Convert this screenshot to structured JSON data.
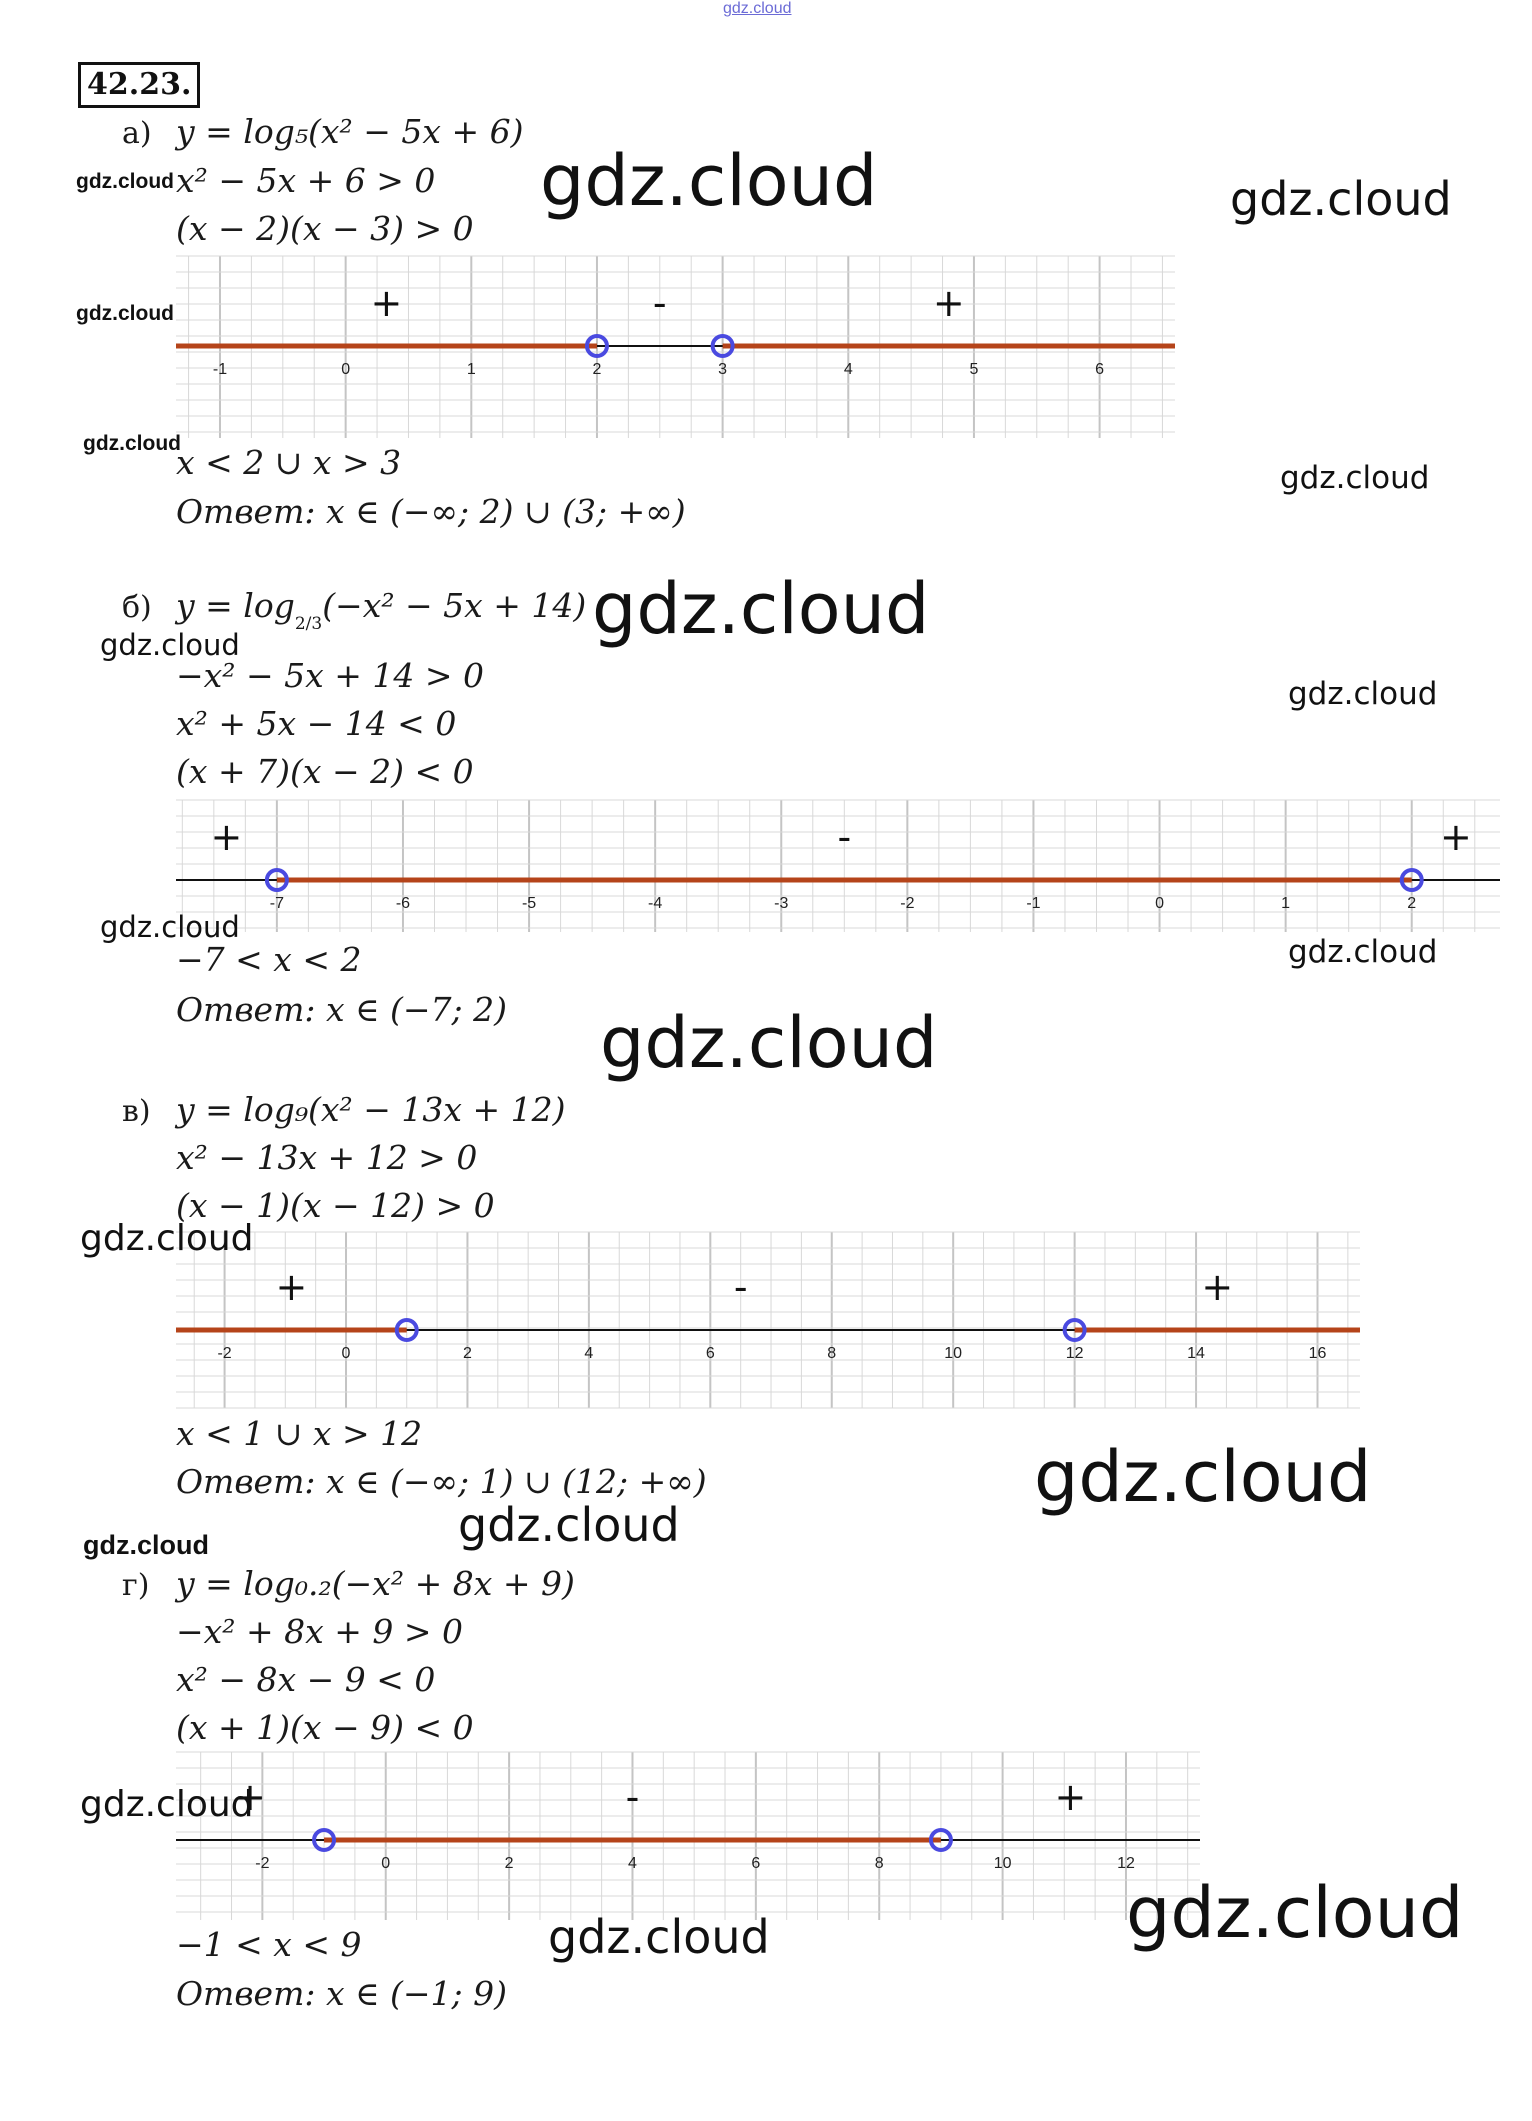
{
  "top_watermark": "gdz.cloud",
  "problem_number": "42.23.",
  "watermarks": {
    "label": "gdz.cloud"
  },
  "parts": [
    {
      "label": "а)",
      "function": "y = log₅(x² − 5x + 6)",
      "steps": [
        "x² − 5x + 6 > 0",
        "(x − 2)(x − 3) > 0"
      ],
      "axis": {
        "ticks": [
          -1,
          0,
          1,
          2,
          3,
          4,
          5,
          6
        ],
        "roots": [
          2,
          3
        ],
        "signs": [
          "+",
          "-",
          "+"
        ],
        "shaded": "outside"
      },
      "solution": "x < 2 ∪ x > 3",
      "answer_word": "Ответ:",
      "answer": "x ∈ (−∞; 2) ∪ (3; +∞)"
    },
    {
      "label": "б)",
      "function": "y = log",
      "function_base": "2/3",
      "function_arg": "(−x² − 5x + 14)",
      "steps": [
        "−x² − 5x + 14 > 0",
        "x² + 5x − 14 < 0",
        "(x + 7)(x − 2) < 0"
      ],
      "axis": {
        "ticks": [
          -7,
          -6,
          -5,
          -4,
          -3,
          -2,
          -1,
          0,
          1,
          2
        ],
        "roots": [
          -7,
          2
        ],
        "signs": [
          "+",
          "-",
          "+"
        ],
        "shaded": "inside"
      },
      "solution": "−7 < x < 2",
      "answer_word": "Ответ:",
      "answer": "x ∈ (−7; 2)"
    },
    {
      "label": "в)",
      "function": "y = log₉(x² − 13x + 12)",
      "steps": [
        "x² − 13x + 12 > 0",
        "(x − 1)(x − 12) > 0"
      ],
      "axis": {
        "ticks": [
          -2,
          0,
          2,
          4,
          6,
          8,
          10,
          12,
          14,
          16
        ],
        "roots": [
          1,
          12
        ],
        "signs": [
          "+",
          "-",
          "+"
        ],
        "shaded": "outside"
      },
      "solution": "x < 1 ∪ x > 12",
      "answer_word": "Ответ:",
      "answer": "x ∈ (−∞; 1) ∪ (12; +∞)"
    },
    {
      "label": "г)",
      "function": "y = log₀.₂(−x² + 8x + 9)",
      "steps": [
        "−x² + 8x + 9 > 0",
        "x² − 8x − 9 < 0",
        "(x + 1)(x − 9) < 0"
      ],
      "axis": {
        "ticks": [
          -2,
          0,
          2,
          4,
          6,
          8,
          10,
          12
        ],
        "roots": [
          -1,
          9
        ],
        "signs": [
          "+",
          "-",
          "+"
        ],
        "shaded": "inside"
      },
      "solution": "−1 < x < 9",
      "answer_word": "Ответ:",
      "answer": "x ∈ (−1; 9)"
    }
  ],
  "colors": {
    "shade": "#b5441a",
    "root_circle": "#4a4ae0",
    "grid": "#d8d8d8",
    "grid_major": "#c4c4c4"
  }
}
